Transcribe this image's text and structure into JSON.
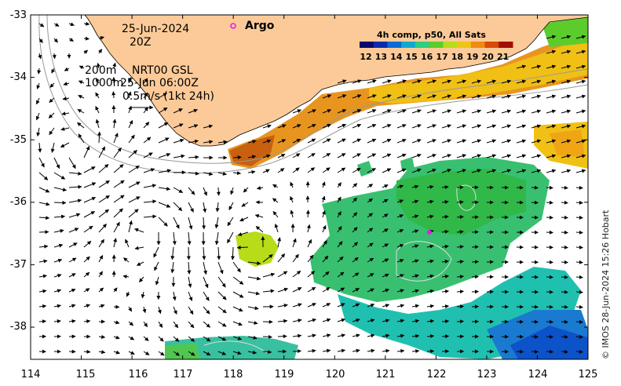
{
  "annotations": {
    "date": "25-Jun-2024",
    "time": "20Z",
    "depth_line1": "200m",
    "depth_line2": "1000m",
    "altimetry_product": "NRT00 GSL",
    "altimetry_time": "25-Jun 06:00Z",
    "vector_scale": "0.5m/s (1kt 24h)",
    "argo_label": "Argo"
  },
  "colorbar": {
    "title": "4h comp, p50, All Sats",
    "ticks": [
      "12",
      "13",
      "14",
      "15",
      "16",
      "17",
      "18",
      "19",
      "20",
      "21"
    ],
    "colors": [
      "#08086b",
      "#0a2bb0",
      "#0a6bd8",
      "#12a8d0",
      "#2ccf7f",
      "#5ccc2c",
      "#b8dc18",
      "#f0c415",
      "#f08a12",
      "#d84a08",
      "#a01004"
    ]
  },
  "axes": {
    "x_ticks": [
      "114",
      "115",
      "116",
      "117",
      "118",
      "119",
      "120",
      "121",
      "122",
      "123",
      "124",
      "125"
    ],
    "y_ticks": [
      "-33",
      "-34",
      "-35",
      "-36",
      "-37",
      "-38"
    ]
  },
  "credit": "© IMOS 28-Jun-2024 15:26 Hobart",
  "colors": {
    "land": "#fcca98",
    "argo_marker": "#e020e0"
  }
}
